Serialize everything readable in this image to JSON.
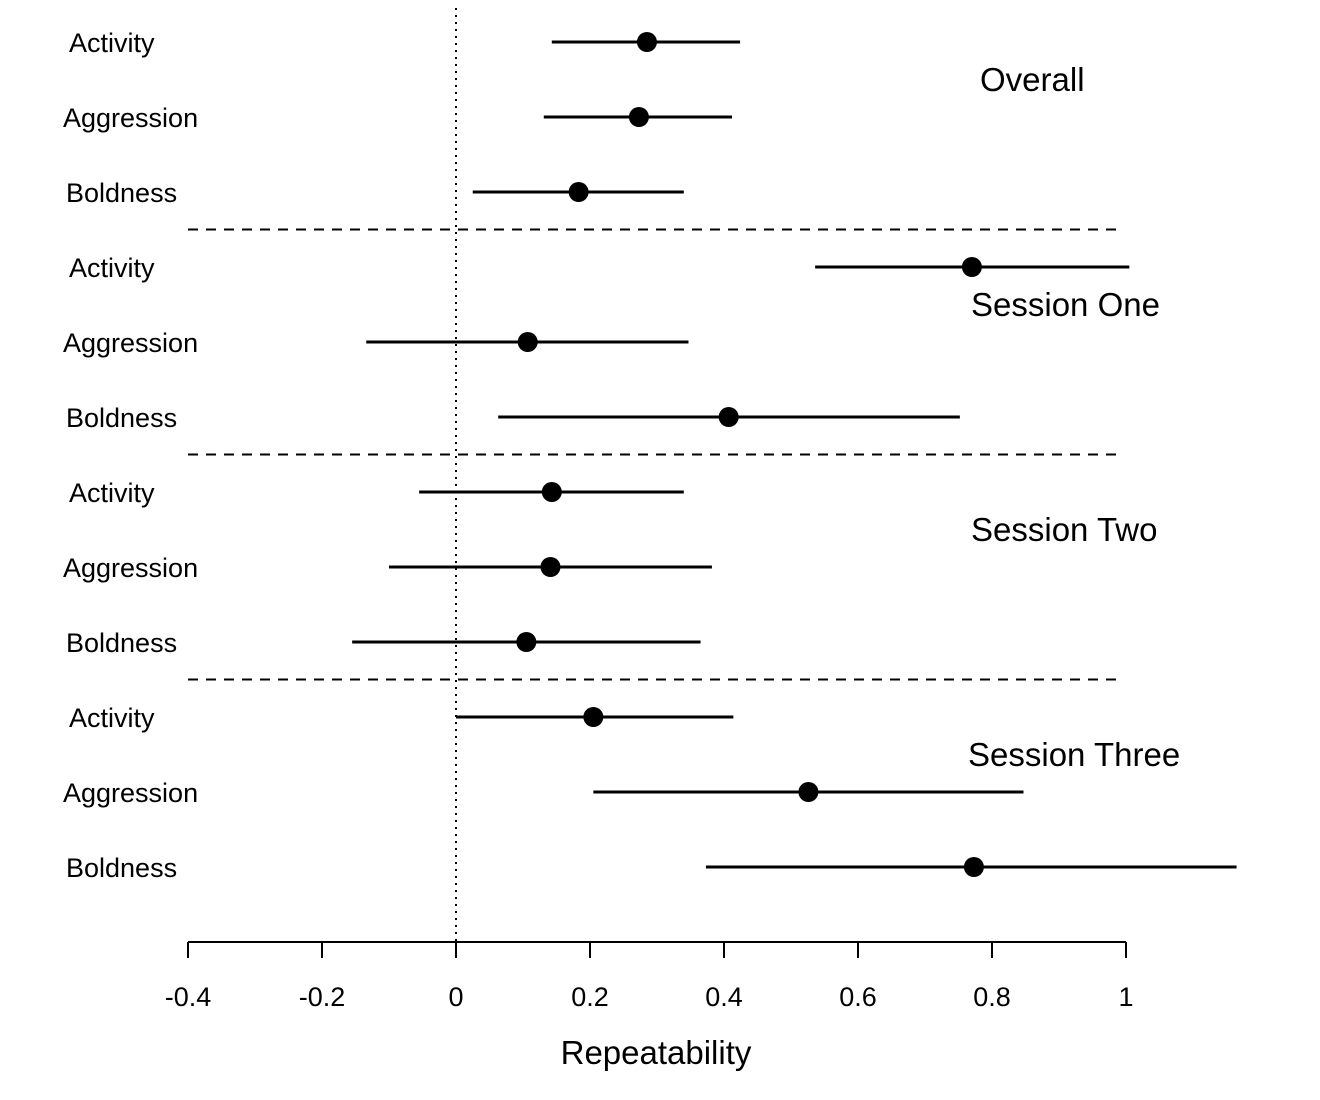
{
  "chart_data": {
    "type": "forest",
    "xlabel": "Repeatability",
    "xlim": [
      -0.4,
      1.0
    ],
    "x_ticks": [
      {
        "value": -0.4,
        "label": "-0.4"
      },
      {
        "value": -0.2,
        "label": "-0.2"
      },
      {
        "value": 0,
        "label": "0"
      },
      {
        "value": 0.2,
        "label": "0.2"
      },
      {
        "value": 0.4,
        "label": "0.4"
      },
      {
        "value": 0.6,
        "label": "0.6"
      },
      {
        "value": 0.8,
        "label": "0.8"
      },
      {
        "value": 1.0,
        "label": "1"
      }
    ],
    "reference_line_x": 0,
    "groups": [
      {
        "label": "Overall",
        "rows": [
          {
            "label": "Activity",
            "estimate": 0.285,
            "lower": 0.143,
            "upper": 0.424
          },
          {
            "label": "Aggression",
            "estimate": 0.273,
            "lower": 0.131,
            "upper": 0.412
          },
          {
            "label": "Boldness",
            "estimate": 0.183,
            "lower": 0.025,
            "upper": 0.34
          }
        ]
      },
      {
        "label": "Session One",
        "rows": [
          {
            "label": "Activity",
            "estimate": 0.77,
            "lower": 0.536,
            "upper": 1.005
          },
          {
            "label": "Aggression",
            "estimate": 0.107,
            "lower": -0.134,
            "upper": 0.347
          },
          {
            "label": "Boldness",
            "estimate": 0.407,
            "lower": 0.063,
            "upper": 0.752
          }
        ]
      },
      {
        "label": "Session Two",
        "rows": [
          {
            "label": "Activity",
            "estimate": 0.143,
            "lower": -0.055,
            "upper": 0.34
          },
          {
            "label": "Aggression",
            "estimate": 0.141,
            "lower": -0.1,
            "upper": 0.382
          },
          {
            "label": "Boldness",
            "estimate": 0.105,
            "lower": -0.155,
            "upper": 0.365
          }
        ]
      },
      {
        "label": "Session Three",
        "rows": [
          {
            "label": "Activity",
            "estimate": 0.205,
            "lower": 0,
            "upper": 0.414
          },
          {
            "label": "Aggression",
            "estimate": 0.526,
            "lower": 0.205,
            "upper": 0.847
          },
          {
            "label": "Boldness",
            "estimate": 0.773,
            "lower": 0.373,
            "upper": 1.165
          }
        ]
      }
    ],
    "grid": false,
    "legend": "none"
  }
}
